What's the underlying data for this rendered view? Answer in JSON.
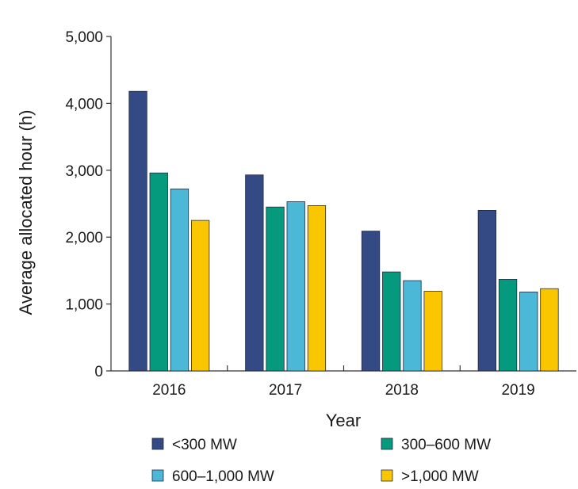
{
  "chart_data": {
    "type": "bar",
    "title": "",
    "xlabel": "Year",
    "ylabel": "Average allocated hour (h)",
    "categories": [
      "2016",
      "2017",
      "2018",
      "2019"
    ],
    "ylim": [
      0,
      5000
    ],
    "yticks": [
      0,
      1000,
      2000,
      3000,
      4000,
      5000
    ],
    "ytick_labels": [
      "0",
      "1,000",
      "2,000",
      "3,000",
      "4,000",
      "5,000"
    ],
    "grid": false,
    "legend_position": "bottom",
    "series": [
      {
        "name": "<300 MW",
        "color": "#344a85",
        "values": [
          4180,
          2930,
          2090,
          2400
        ]
      },
      {
        "name": "300–600 MW",
        "color": "#059a7e",
        "values": [
          2960,
          2450,
          1480,
          1370
        ]
      },
      {
        "name": "600–1,000 MW",
        "color": "#4ab8d6",
        "values": [
          2720,
          2530,
          1350,
          1180
        ]
      },
      {
        "name": ">1,000 MW",
        "color": "#f9c600",
        "values": [
          2250,
          2470,
          1190,
          1230
        ]
      }
    ]
  }
}
